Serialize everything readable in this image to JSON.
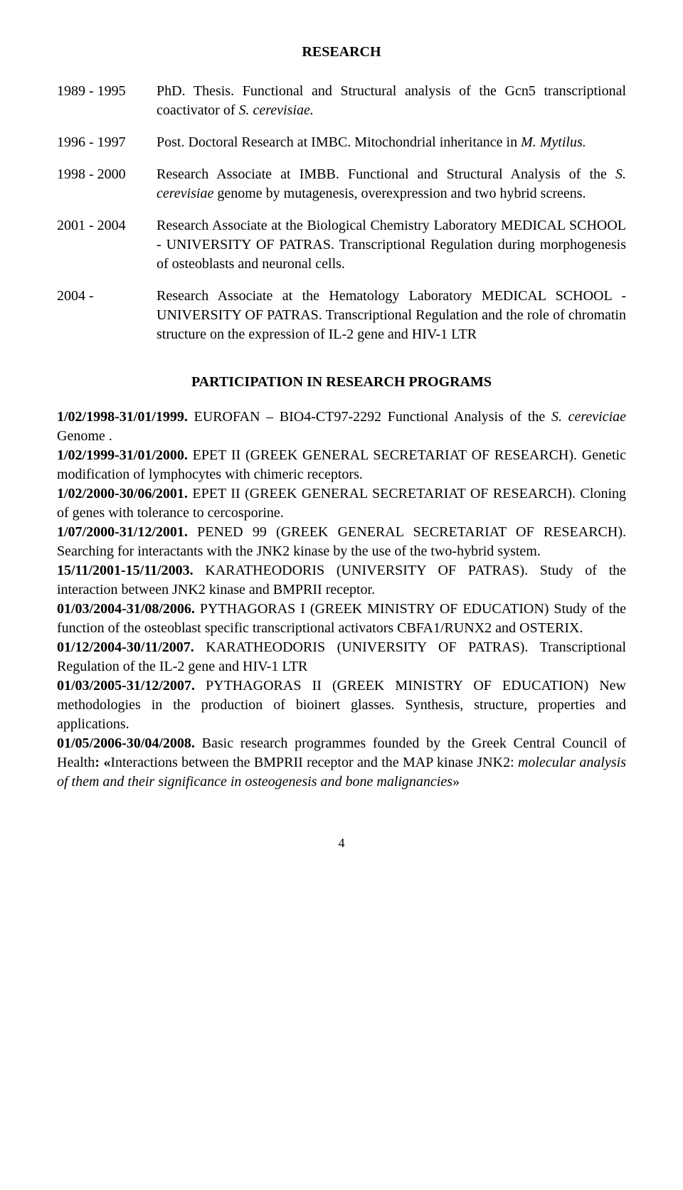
{
  "title": "RESEARCH",
  "entries": [
    {
      "year": "1989 - 1995",
      "parts": [
        {
          "t": "PhD. Thesis. Functional and Structural analysis of the Gcn5 transcriptional coactivator of "
        },
        {
          "t": "S. cerevisiae.",
          "i": true
        }
      ]
    },
    {
      "year": "1996 - 1997",
      "parts": [
        {
          "t": "Post. Doctoral Research at IMBC. Mitochondrial inheritance in "
        },
        {
          "t": "M. Mytilus.",
          "i": true
        }
      ]
    },
    {
      "year": "1998 - 2000",
      "parts": [
        {
          "t": "Research Associate at IMBB. Functional and Structural Analysis of the "
        },
        {
          "t": "S. cerevisiae",
          "i": true
        },
        {
          "t": " genome by mutagenesis, overexpression and two hybrid screens."
        }
      ]
    },
    {
      "year": "2001 - 2004",
      "parts": [
        {
          "t": "Research Associate at the Biological Chemistry Laboratory MEDICAL SCHOOL - UNIVERSITY OF PATRAS. Transcriptional Regulation during morphogenesis of osteoblasts and neuronal cells."
        }
      ]
    },
    {
      "year": "2004 -",
      "parts": [
        {
          "t": "Research Associate at the Hematology Laboratory       MEDICAL SCHOOL - UNIVERSITY OF PATRAS. Transcriptional Regulation and the role of chromatin structure on the expression of IL-2 gene and HIV-1 LTR"
        }
      ]
    }
  ],
  "section2_title": "PARTICIPATION IN RESEARCH PROGRAMS",
  "programs": [
    {
      "segs": [
        {
          "t": "1/02/1998-31/01/1999.",
          "b": true
        },
        {
          "t": " EUROFAN – BIO4-CT97-2292 Functional Analysis of the "
        },
        {
          "t": "S. cereviciae",
          "i": true
        },
        {
          "t": " Genome ."
        }
      ]
    },
    {
      "segs": [
        {
          "t": "1/02/1999-31/01/2000.",
          "b": true
        },
        {
          "t": " EPET II (GREEK GENERAL SECRETARIAT OF RESEARCH). Genetic modification of lymphocytes with chimeric receptors."
        }
      ]
    },
    {
      "segs": [
        {
          "t": "1/02/2000-30/06/2001.",
          "b": true
        },
        {
          "t": " EPET II (GREEK GENERAL SECRETARIAT OF RESEARCH). Cloning of genes with tolerance to cercosporine."
        }
      ]
    },
    {
      "segs": [
        {
          "t": "1/07/2000-31/12/2001.",
          "b": true
        },
        {
          "t": " PENED 99 (GREEK GENERAL SECRETARIAT OF RESEARCH). Searching for interactants with the JNK2 kinase by the use of the two-hybrid system."
        }
      ]
    },
    {
      "segs": [
        {
          "t": " 15/11/2001-15/11/2003.",
          "b": true
        },
        {
          "t": " KARATHEODORIS (UNIVERSITY OF PATRAS). Study of the interaction between JNK2 kinase and  BMPRII receptor."
        }
      ]
    },
    {
      "segs": [
        {
          "t": "01/03/2004-31/08/2006.",
          "b": true
        },
        {
          "t": " PYTHAGORAS I (GREEK MINISTRY OF EDUCATION) Study of the function of the osteoblast specific transcriptional activators CBFA1/RUNX2 and OSTERIX."
        }
      ]
    },
    {
      "segs": [
        {
          "t": "   01/12/2004-30/11/2007.",
          "b": true
        },
        {
          "t": " KARATHEODORIS (UNIVERSITY OF PATRAS). Transcriptional Regulation of the IL-2 gene and HIV-1 LTR"
        }
      ]
    },
    {
      "segs": [
        {
          "t": "01/03/2005-31/12/2007.",
          "b": true
        },
        {
          "t": " PYTHAGORAS II (GREEK MINISTRY OF EDUCATION) New methodologies in the production of bioinert glasses. Synthesis, structure, properties and applications."
        }
      ]
    },
    {
      "segs": [
        {
          "t": "01/05/2006-30/04/2008.",
          "b": true
        },
        {
          "t": " Basic research programmes founded by the Greek Central Council of Health"
        },
        {
          "t": ": «",
          "b": true
        },
        {
          "t": "Interactions between the BMPRII receptor and the MAP kinase JNK2: "
        },
        {
          "t": "molecular analysis of them and their significance in osteogenesis and bone malignancies",
          "i": true
        },
        {
          "t": "»"
        }
      ]
    }
  ],
  "page_number": "4"
}
